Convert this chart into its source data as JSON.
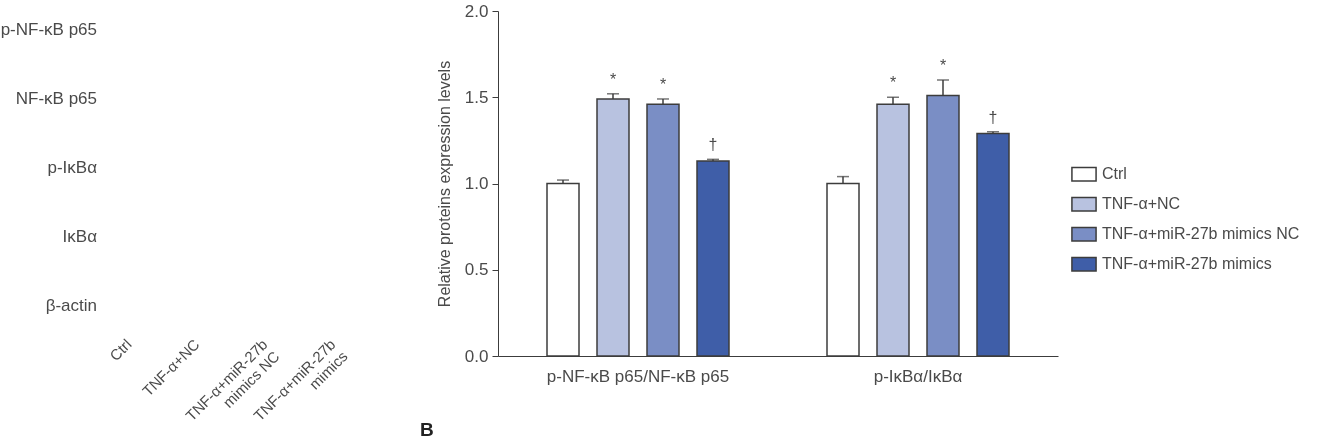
{
  "chart_data": [
    {
      "type": "other",
      "y_categories": [
        "p-NF-κB p65",
        "NF-κB p65",
        "p-IκBα",
        "IκBα",
        "β-actin"
      ],
      "categories": [
        "Ctrl",
        "TNF-α+NC",
        "TNF-α+miR-27b\nmimics NC",
        "TNF-α+miR-27b\nmimics"
      ]
    },
    {
      "type": "bar",
      "ylabel": "Relative proteins expression levels",
      "categories": [
        "p-NF-κB p65/NF-κB p65",
        "p-IκBα/IκBα"
      ],
      "series": [
        {
          "name": "Ctrl",
          "color": "#ffffff",
          "values": [
            1.0,
            1.0
          ],
          "errors": [
            0.02,
            0.04
          ]
        },
        {
          "name": "TNF-α+NC",
          "color": "#b8c2e0",
          "values": [
            1.49,
            1.46
          ],
          "errors": [
            0.03,
            0.04
          ],
          "value_labels": [
            "*",
            "*"
          ]
        },
        {
          "name": "TNF-α+miR-27b mimics NC",
          "color": "#7a8ec5",
          "values": [
            1.46,
            1.51
          ],
          "errors": [
            0.03,
            0.09
          ],
          "value_labels": [
            "*",
            "*"
          ]
        },
        {
          "name": "TNF-α+miR-27b mimics",
          "color": "#3f5ea8",
          "values": [
            1.13,
            1.29
          ],
          "errors": [
            0.01,
            0.01
          ],
          "value_labels": [
            "†",
            "†"
          ]
        }
      ],
      "ylim": [
        0,
        2
      ],
      "yticks": [
        {
          "value": 0,
          "label": "0.0"
        },
        0.5,
        {
          "value": 1,
          "label": "1.0"
        },
        1.5,
        {
          "value": 2,
          "label": "2.0"
        }
      ],
      "legend": "right",
      "annotations": [
        "B"
      ]
    }
  ]
}
